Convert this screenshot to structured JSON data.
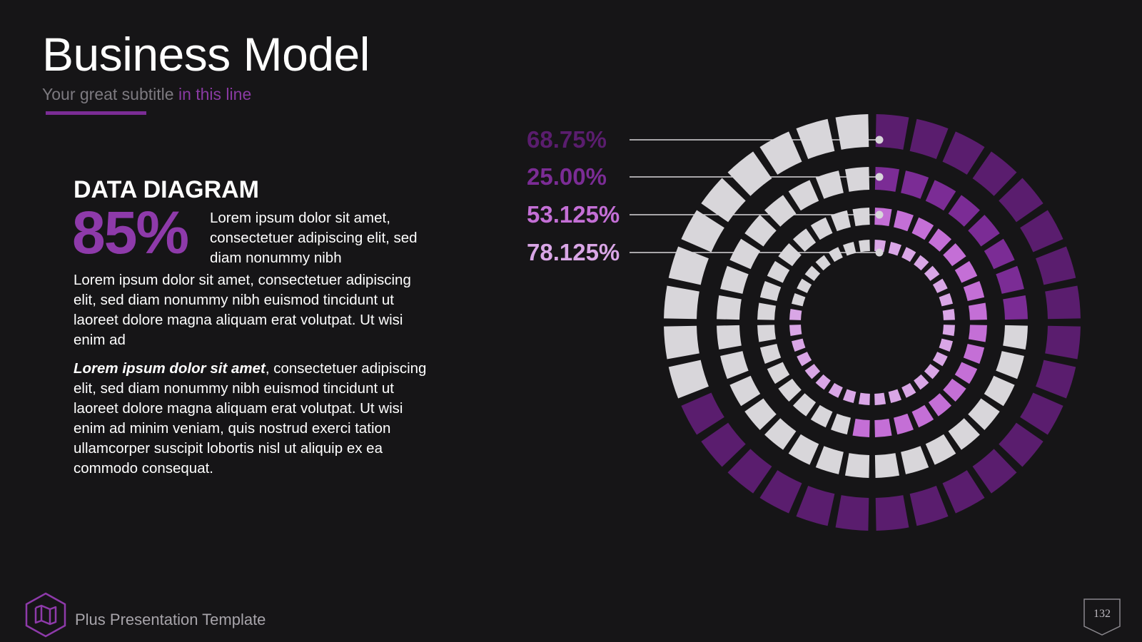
{
  "slide": {
    "title": "Business Model",
    "subtitle_main": "Your great subtitle",
    "subtitle_accent": "in this line",
    "page_number": "132"
  },
  "content": {
    "heading": "DATA DIAGRAM",
    "big_percent": "85%",
    "intro": "Lorem ipsum dolor sit amet, consectetuer adipiscing elit, sed diam nonummy nibh",
    "paragraph1": "Lorem ipsum dolor sit amet, consectetuer adipiscing elit, sed diam nonummy nibh euismod tincidunt ut laoreet dolore magna aliquam erat volutpat. Ut wisi enim ad",
    "paragraph2_lead": "Lorem ipsum dolor sit amet",
    "paragraph2_rest": ", consectetuer adipiscing elit, sed diam nonummy nibh euismod tincidunt ut laoreet dolore magna aliquam erat volutpat. Ut wisi enim ad minim veniam, quis nostrud exerci tation ullamcorper suscipit lobortis nisl ut aliquip ex ea commodo consequat."
  },
  "footer": {
    "brand": "Plus Presentation Template",
    "logo_icon": "map-icon"
  },
  "colors": {
    "background": "#161517",
    "track": "#d8d6da",
    "accent": "#8e3aaa"
  },
  "chart_data": {
    "type": "radial-segmented-rings",
    "segments_per_ring": 32,
    "series": [
      {
        "label": "68.75%",
        "value": 68.75,
        "color": "#5a1d6e"
      },
      {
        "label": "25.00%",
        "value": 25.0,
        "color": "#7b2c95"
      },
      {
        "label": "53.125%",
        "value": 53.125,
        "color": "#c46fd6"
      },
      {
        "label": "78.125%",
        "value": 78.125,
        "color": "#d9a6e6"
      }
    ]
  }
}
